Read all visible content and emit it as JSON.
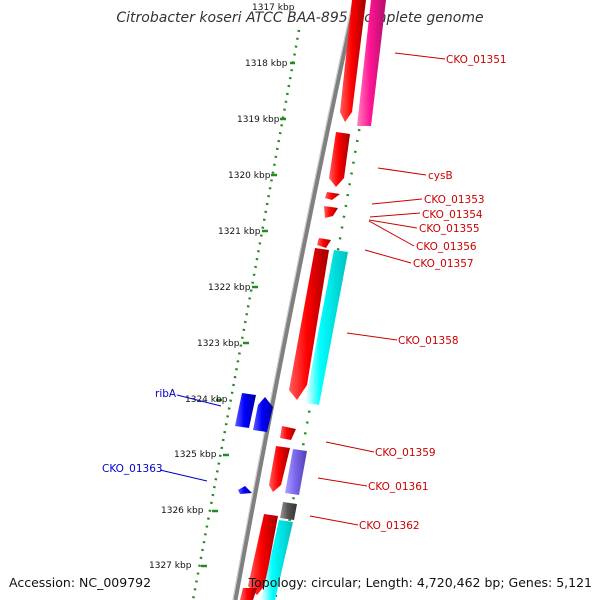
{
  "title": "Citrobacter koseri ATCC BAA-895, complete genome",
  "accession": "Accession: NC_009792",
  "topology": "Topology: circular; Length: 4,720,462 bp; Genes: 5,121",
  "ruler_labels": [
    "1317 kbp",
    "1318 kbp",
    "1319 kbp",
    "1320 kbp",
    "1321 kbp",
    "1322 kbp",
    "1323 kbp",
    "1324 kbp",
    "1325 kbp",
    "1326 kbp",
    "1327 kbp"
  ],
  "genes": {
    "CKO_01351": "CKO_01351",
    "cysB": "cysB",
    "CKO_01353": "CKO_01353",
    "CKO_01354": "CKO_01354",
    "CKO_01355": "CKO_01355",
    "CKO_01356": "CKO_01356",
    "CKO_01357": "CKO_01357",
    "CKO_01358": "CKO_01358",
    "ribA": "ribA",
    "CKO_01359": "CKO_01359",
    "CKO_01361": "CKO_01361",
    "CKO_01362": "CKO_01362",
    "CKO_01363": "CKO_01363"
  },
  "colors": {
    "backbone": "#808080",
    "forward_cds": "#ff0000",
    "reverse_cds": "#0000ff",
    "magenta_track": "#ff1493",
    "cyan_track": "#00ffff",
    "purple_track": "#7b68ee",
    "gray_track": "#555555",
    "ruler": "#228b22",
    "label_red": "#cc0000",
    "label_blue": "#0000cc"
  }
}
